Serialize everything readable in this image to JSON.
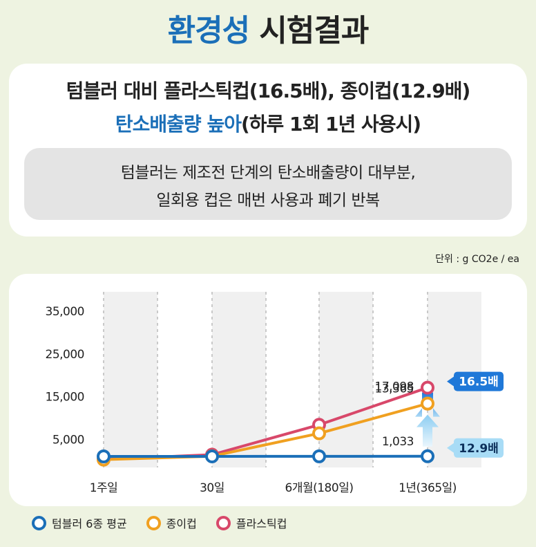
{
  "header": {
    "title_accent": "환경성",
    "title_rest": "시험결과"
  },
  "headline": {
    "line1": "텀블러 대비 플라스틱컵(16.5배), 종이컵(12.9배)",
    "line2_blue": "탄소배출량 높아",
    "line2_rest": "(하루 1회 1년 사용시)"
  },
  "note": {
    "line1": "텀블러는 제조전 단계의 탄소배출량이 대부분,",
    "line2": "일회용 컵은 매번 사용과 폐기 반복"
  },
  "unit_label": "단위 : g CO2e / ea",
  "colors": {
    "tumbler": "#1b6fb8",
    "paper": "#f0a020",
    "plastic": "#d8486a",
    "arrow_dark": "#1f78d8",
    "arrow_light": "#8ccdf2"
  },
  "chart_data": {
    "type": "line",
    "categories": [
      "1주일",
      "30일",
      "6개월(180일)",
      "1년(365일)"
    ],
    "yticks": [
      "35,000",
      "25,000",
      "15,000",
      "5,000"
    ],
    "ytick_values": [
      35000,
      25000,
      15000,
      5000
    ],
    "series": [
      {
        "name": "텀블러 6종 평균",
        "key": "tumbler",
        "values": [
          1000,
          1005,
          1020,
          1033
        ]
      },
      {
        "name": "종이컵",
        "key": "paper",
        "values": [
          245,
          1050,
          6400,
          13365
        ]
      },
      {
        "name": "플라스틱컵",
        "key": "plastic",
        "values": [
          320,
          1400,
          8400,
          17098
        ]
      }
    ],
    "data_labels": [
      "1,033",
      "13,365",
      "17,098"
    ],
    "ratio_labels": [
      "16.5배",
      "12.9배"
    ],
    "legend_position": "bottom-left"
  }
}
